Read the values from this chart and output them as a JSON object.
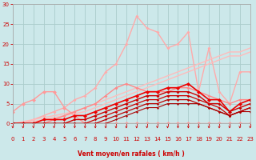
{
  "background_color": "#cce8ea",
  "grid_color": "#aacccc",
  "xlabel": "Vent moyen/en rafales ( km/h )",
  "xlabel_color": "#cc0000",
  "tick_color": "#cc0000",
  "axis_color": "#aaaaaa",
  "xlim": [
    0,
    23
  ],
  "ylim": [
    0,
    30
  ],
  "yticks": [
    0,
    5,
    10,
    15,
    20,
    25,
    30
  ],
  "xticks": [
    0,
    1,
    2,
    3,
    4,
    5,
    6,
    7,
    8,
    9,
    10,
    11,
    12,
    13,
    14,
    15,
    16,
    17,
    18,
    19,
    20,
    21,
    22,
    23
  ],
  "lines": [
    {
      "x": [
        0,
        1,
        2,
        3,
        4,
        5,
        6,
        7,
        8,
        9,
        10,
        11,
        12,
        13,
        14,
        15,
        16,
        17,
        18,
        19,
        20,
        21,
        22,
        23
      ],
      "y": [
        0,
        0,
        1,
        2,
        3,
        4,
        6,
        7,
        9,
        13,
        15,
        20,
        27,
        24,
        23,
        19,
        20,
        23,
        8,
        19,
        8,
        5,
        13,
        13
      ],
      "color": "#ffaaaa",
      "lw": 1.0,
      "marker": "D",
      "ms": 2.0
    },
    {
      "x": [
        0,
        1,
        2,
        3,
        4,
        5,
        6,
        7,
        8,
        9,
        10,
        11,
        12,
        13,
        14,
        15,
        16,
        17,
        18,
        19,
        20,
        21,
        22,
        23
      ],
      "y": [
        0,
        0.5,
        1,
        1.5,
        2,
        2.5,
        3,
        4,
        5,
        6,
        7,
        8,
        9,
        10,
        11,
        12,
        13,
        14,
        15,
        16,
        17,
        18,
        18,
        19
      ],
      "color": "#ffbbbb",
      "lw": 1.0,
      "marker": null,
      "ms": 0
    },
    {
      "x": [
        0,
        1,
        2,
        3,
        4,
        5,
        6,
        7,
        8,
        9,
        10,
        11,
        12,
        13,
        14,
        15,
        16,
        17,
        18,
        19,
        20,
        21,
        22,
        23
      ],
      "y": [
        0,
        0,
        0.5,
        1,
        1.5,
        2,
        2.5,
        3,
        4,
        5,
        6,
        7,
        8,
        9,
        10,
        11,
        12,
        13,
        14,
        15,
        16,
        17,
        17,
        18
      ],
      "color": "#ffbbbb",
      "lw": 1.0,
      "marker": null,
      "ms": 0
    },
    {
      "x": [
        0,
        1,
        2,
        3,
        4,
        5,
        6,
        7,
        8,
        9,
        10,
        11,
        12,
        13,
        14,
        15,
        16,
        17,
        18,
        19,
        20,
        21,
        22,
        23
      ],
      "y": [
        3,
        5,
        6,
        8,
        8,
        4,
        2,
        0,
        0,
        0,
        0,
        0,
        0,
        0,
        0,
        0,
        0,
        0,
        0,
        0,
        0,
        0,
        0,
        0
      ],
      "color": "#ff9999",
      "lw": 1.0,
      "marker": "D",
      "ms": 2.5
    },
    {
      "x": [
        0,
        1,
        2,
        3,
        4,
        5,
        6,
        7,
        8,
        9,
        10,
        11,
        12,
        13,
        14,
        15,
        16,
        17,
        18,
        19,
        20,
        21,
        22,
        23
      ],
      "y": [
        0,
        0,
        0,
        0,
        1,
        2,
        3,
        4,
        5,
        7,
        9,
        10,
        9,
        8,
        8,
        8,
        9,
        9,
        8,
        7,
        6,
        5,
        6,
        6
      ],
      "color": "#ff8888",
      "lw": 1.0,
      "marker": "D",
      "ms": 2.0
    },
    {
      "x": [
        0,
        1,
        2,
        3,
        4,
        5,
        6,
        7,
        8,
        9,
        10,
        11,
        12,
        13,
        14,
        15,
        16,
        17,
        18,
        19,
        20,
        21,
        22,
        23
      ],
      "y": [
        0,
        0,
        0,
        1,
        1,
        1,
        2,
        2,
        3,
        4,
        5,
        6,
        7,
        8,
        8,
        9,
        9,
        10,
        8,
        6,
        6,
        3,
        5,
        6
      ],
      "color": "#ee0000",
      "lw": 1.2,
      "marker": "D",
      "ms": 2.5
    },
    {
      "x": [
        0,
        1,
        2,
        3,
        4,
        5,
        6,
        7,
        8,
        9,
        10,
        11,
        12,
        13,
        14,
        15,
        16,
        17,
        18,
        19,
        20,
        21,
        22,
        23
      ],
      "y": [
        0,
        0,
        0,
        0,
        0,
        0,
        1,
        1,
        2,
        3,
        4,
        5,
        6,
        7,
        7,
        8,
        8,
        8,
        7,
        5,
        5,
        3,
        4,
        5
      ],
      "color": "#cc0000",
      "lw": 1.0,
      "marker": "D",
      "ms": 2.0
    },
    {
      "x": [
        0,
        1,
        2,
        3,
        4,
        5,
        6,
        7,
        8,
        9,
        10,
        11,
        12,
        13,
        14,
        15,
        16,
        17,
        18,
        19,
        20,
        21,
        22,
        23
      ],
      "y": [
        0,
        0,
        0,
        0,
        0,
        0,
        0,
        0,
        1,
        2,
        3,
        4,
        5,
        6,
        6,
        7,
        7,
        7,
        6,
        5,
        4,
        2,
        3,
        4
      ],
      "color": "#cc0000",
      "lw": 0.9,
      "marker": "D",
      "ms": 1.8
    },
    {
      "x": [
        0,
        1,
        2,
        3,
        4,
        5,
        6,
        7,
        8,
        9,
        10,
        11,
        12,
        13,
        14,
        15,
        16,
        17,
        18,
        19,
        20,
        21,
        22,
        23
      ],
      "y": [
        0,
        0,
        0,
        0,
        0,
        0,
        0,
        0,
        0,
        1,
        2,
        3,
        4,
        5,
        5,
        6,
        6,
        6,
        5,
        4,
        3,
        2,
        3,
        4
      ],
      "color": "#bb0000",
      "lw": 0.9,
      "marker": "D",
      "ms": 1.6
    },
    {
      "x": [
        0,
        1,
        2,
        3,
        4,
        5,
        6,
        7,
        8,
        9,
        10,
        11,
        12,
        13,
        14,
        15,
        16,
        17,
        18,
        19,
        20,
        21,
        22,
        23
      ],
      "y": [
        0,
        0,
        0,
        0,
        0,
        0,
        0,
        0,
        0,
        0,
        1,
        2,
        3,
        4,
        4,
        5,
        5,
        5,
        5,
        4,
        3,
        2,
        3,
        3
      ],
      "color": "#aa0000",
      "lw": 0.8,
      "marker": "D",
      "ms": 1.5
    }
  ]
}
